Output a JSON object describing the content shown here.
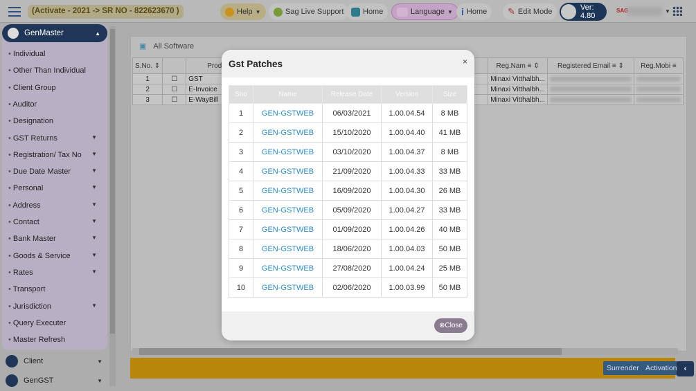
{
  "topbar": {
    "activate": "(Activate - 2021 -> SR NO - 822623670 )",
    "help": "Help",
    "live_support": "Sag Live Support",
    "home1": "Home",
    "language": "Language",
    "home2": "Home",
    "edit_mode": "Edit Mode",
    "version": "Ver: 4.80",
    "brand": "SAG"
  },
  "sidebar": {
    "header": "GenMaster",
    "items": [
      {
        "label": "Individual",
        "sub": false
      },
      {
        "label": "Other Than Individual",
        "sub": false
      },
      {
        "label": "Client Group",
        "sub": false
      },
      {
        "label": "Auditor",
        "sub": false
      },
      {
        "label": "Designation",
        "sub": false
      },
      {
        "label": "GST Returns",
        "sub": true
      },
      {
        "label": "Registration/ Tax No",
        "sub": true
      },
      {
        "label": "Due Date Master",
        "sub": true
      },
      {
        "label": "Personal",
        "sub": true
      },
      {
        "label": "Address",
        "sub": true
      },
      {
        "label": "Contact",
        "sub": true
      },
      {
        "label": "Bank Master",
        "sub": true
      },
      {
        "label": "Goods & Service",
        "sub": true
      },
      {
        "label": "Rates",
        "sub": true
      },
      {
        "label": "Transport",
        "sub": false
      },
      {
        "label": "Jurisdiction",
        "sub": true
      },
      {
        "label": "Query Executer",
        "sub": false
      },
      {
        "label": "Master Refresh",
        "sub": false
      }
    ],
    "lower": [
      {
        "label": "Client"
      },
      {
        "label": "GenGST"
      }
    ]
  },
  "panel": {
    "title": "All Software",
    "columns": [
      "S.No.",
      "",
      "Prod",
      "Reg.Nam",
      "Registered Email",
      "Reg.Mobi"
    ],
    "rows": [
      {
        "sno": "1",
        "product": "GST",
        "reg_name": "Minaxi Vitthalbh..."
      },
      {
        "sno": "2",
        "product": "E-Invoice",
        "reg_name": "Minaxi Vitthalbh..."
      },
      {
        "sno": "3",
        "product": "E-WayBill",
        "reg_name": "Minaxi Vitthalbh..."
      }
    ]
  },
  "footer": {
    "surrender": "Surrender",
    "activation": "Activation",
    "collapse": "‹"
  },
  "modal": {
    "title": "Gst Patches",
    "close_x": "×",
    "close": "⊗Close",
    "headers": [
      "Sno",
      "Name",
      "Release Date",
      "Version",
      "Size"
    ],
    "rows": [
      [
        "1",
        "GEN-GSTWEB",
        "06/03/2021",
        "1.00.04.54",
        "8 MB"
      ],
      [
        "2",
        "GEN-GSTWEB",
        "15/10/2020",
        "1.00.04.40",
        "41 MB"
      ],
      [
        "3",
        "GEN-GSTWEB",
        "03/10/2020",
        "1.00.04.37",
        "8 MB"
      ],
      [
        "4",
        "GEN-GSTWEB",
        "21/09/2020",
        "1.00.04.33",
        "33 MB"
      ],
      [
        "5",
        "GEN-GSTWEB",
        "16/09/2020",
        "1.00.04.30",
        "26 MB"
      ],
      [
        "6",
        "GEN-GSTWEB",
        "05/09/2020",
        "1.00.04.27",
        "33 MB"
      ],
      [
        "7",
        "GEN-GSTWEB",
        "01/09/2020",
        "1.00.04.26",
        "40 MB"
      ],
      [
        "8",
        "GEN-GSTWEB",
        "18/06/2020",
        "1.00.04.03",
        "50 MB"
      ],
      [
        "9",
        "GEN-GSTWEB",
        "27/08/2020",
        "1.00.04.24",
        "25 MB"
      ],
      [
        "10",
        "GEN-GSTWEB",
        "02/06/2020",
        "1.00.03.99",
        "50 MB"
      ]
    ]
  }
}
